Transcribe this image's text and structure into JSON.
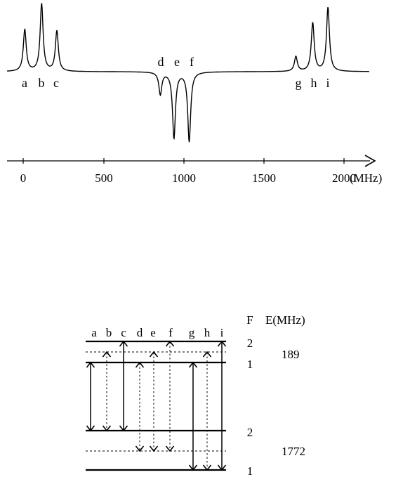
{
  "spectrum": {
    "peak_labels": [
      "a",
      "b",
      "c",
      "d",
      "e",
      "f",
      "g",
      "h",
      "i"
    ],
    "axis": {
      "ticks": [
        0,
        500,
        1000,
        1500,
        2000
      ],
      "tick_labels": [
        "0",
        "500",
        "1000",
        "1500",
        "2000"
      ],
      "unit_label": "(MHz)",
      "range": [
        -100,
        2180
      ]
    },
    "peaks": [
      {
        "label": "a",
        "freq": 10,
        "height": 0.62
      },
      {
        "label": "b",
        "freq": 115,
        "height": 1.0
      },
      {
        "label": "c",
        "freq": 210,
        "height": 0.6
      },
      {
        "label": "d",
        "freq": 855,
        "height": -0.32
      },
      {
        "label": "e",
        "freq": 940,
        "height": -0.95
      },
      {
        "label": "f",
        "freq": 1035,
        "height": -1.0
      },
      {
        "label": "g",
        "freq": 1700,
        "height": 0.22
      },
      {
        "label": "h",
        "freq": 1805,
        "height": 0.72
      },
      {
        "label": "i",
        "freq": 1900,
        "height": 0.95
      }
    ]
  },
  "levels": {
    "transition_labels": [
      "a",
      "b",
      "c",
      "d",
      "e",
      "f",
      "g",
      "h",
      "i"
    ],
    "F_header": "F",
    "E_header": "E(MHz)",
    "upper": {
      "F_top": "2",
      "F_bottom": "1",
      "splitting": "189"
    },
    "lower": {
      "F_top": "2",
      "F_bottom": "1",
      "splitting": "1772"
    },
    "transitions": [
      {
        "label": "a",
        "from": "U1",
        "to": "L2",
        "style": "solid",
        "direction": "both"
      },
      {
        "label": "b",
        "from": "Um",
        "to": "L2",
        "style": "dotted",
        "direction": "both"
      },
      {
        "label": "c",
        "from": "U2",
        "to": "L2",
        "style": "solid",
        "direction": "both"
      },
      {
        "label": "d",
        "from": "U1",
        "to": "Lm",
        "style": "dotted",
        "direction": "both"
      },
      {
        "label": "e",
        "from": "Um",
        "to": "Lm",
        "style": "dotted",
        "direction": "both"
      },
      {
        "label": "f",
        "from": "U2",
        "to": "Lm",
        "style": "dotted",
        "direction": "both"
      },
      {
        "label": "g",
        "from": "U1",
        "to": "L1",
        "style": "solid",
        "direction": "both"
      },
      {
        "label": "h",
        "from": "Um",
        "to": "L1",
        "style": "dotted",
        "direction": "both"
      },
      {
        "label": "i",
        "from": "U2",
        "to": "L1",
        "style": "solid",
        "direction": "both"
      }
    ]
  }
}
